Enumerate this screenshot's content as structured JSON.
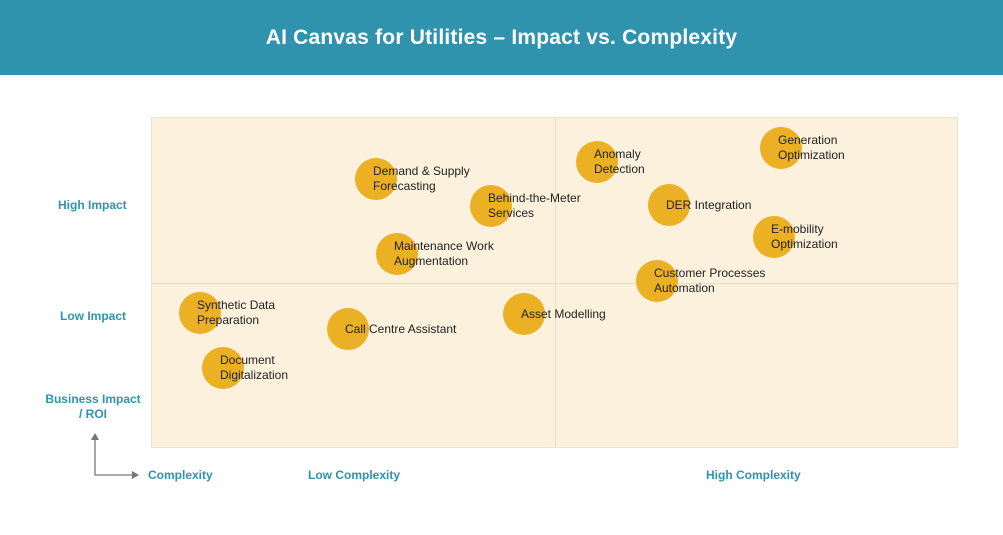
{
  "header": {
    "title": "AI Canvas for Utilities – Impact vs. Complexity"
  },
  "axes": {
    "high_impact": "High Impact",
    "low_impact": "Low Impact",
    "y_axis_title": "Business Impact\n/ ROI",
    "x_axis_title": "Complexity",
    "low_complexity": "Low Complexity",
    "high_complexity": "High Complexity"
  },
  "items": [
    {
      "label": "Demand & Supply\nForecasting"
    },
    {
      "label": "Behind-the-Meter\nServices"
    },
    {
      "label": "Maintenance Work\nAugmentation"
    },
    {
      "label": "Anomaly\nDetection"
    },
    {
      "label": "Generation\nOptimization"
    },
    {
      "label": "DER Integration"
    },
    {
      "label": "E-mobility\nOptimization"
    },
    {
      "label": "Customer Processes\nAutomation"
    },
    {
      "label": "Synthetic Data\nPreparation"
    },
    {
      "label": "Call Centre Assistant"
    },
    {
      "label": "Asset Modelling"
    },
    {
      "label": "Document\nDigitalization"
    }
  ],
  "colors": {
    "header": "#2f93ad",
    "dot": "#ebb023",
    "grid": "#fbf1dd",
    "axis_text": "#2f93ad"
  }
}
